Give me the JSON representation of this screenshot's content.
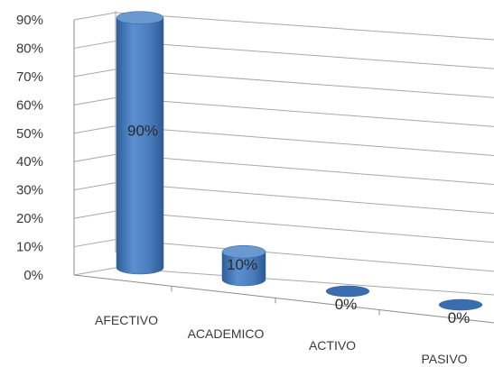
{
  "chart_data": {
    "type": "bar",
    "style": "3d-cylinder",
    "categories": [
      "AFECTIVO",
      "ACADEMICO",
      "ACTIVO",
      "PASIVO"
    ],
    "values": [
      90,
      10,
      0,
      0
    ],
    "data_labels": [
      "90%",
      "10%",
      "0%",
      "0%"
    ],
    "y_ticks": [
      "0%",
      "10%",
      "20%",
      "30%",
      "40%",
      "50%",
      "60%",
      "70%",
      "80%",
      "90%"
    ],
    "ylim": [
      0,
      90
    ],
    "grid": true,
    "legend": "none",
    "title": "",
    "xlabel": "",
    "ylabel": ""
  },
  "colors": {
    "bar_fill": "#4f81bd",
    "bar_dark": "#2f5f99",
    "bar_top": "#6a98d0",
    "grid": "#a8a8a8",
    "axis": "#8c8c8c",
    "text": "#3a3a3a"
  }
}
